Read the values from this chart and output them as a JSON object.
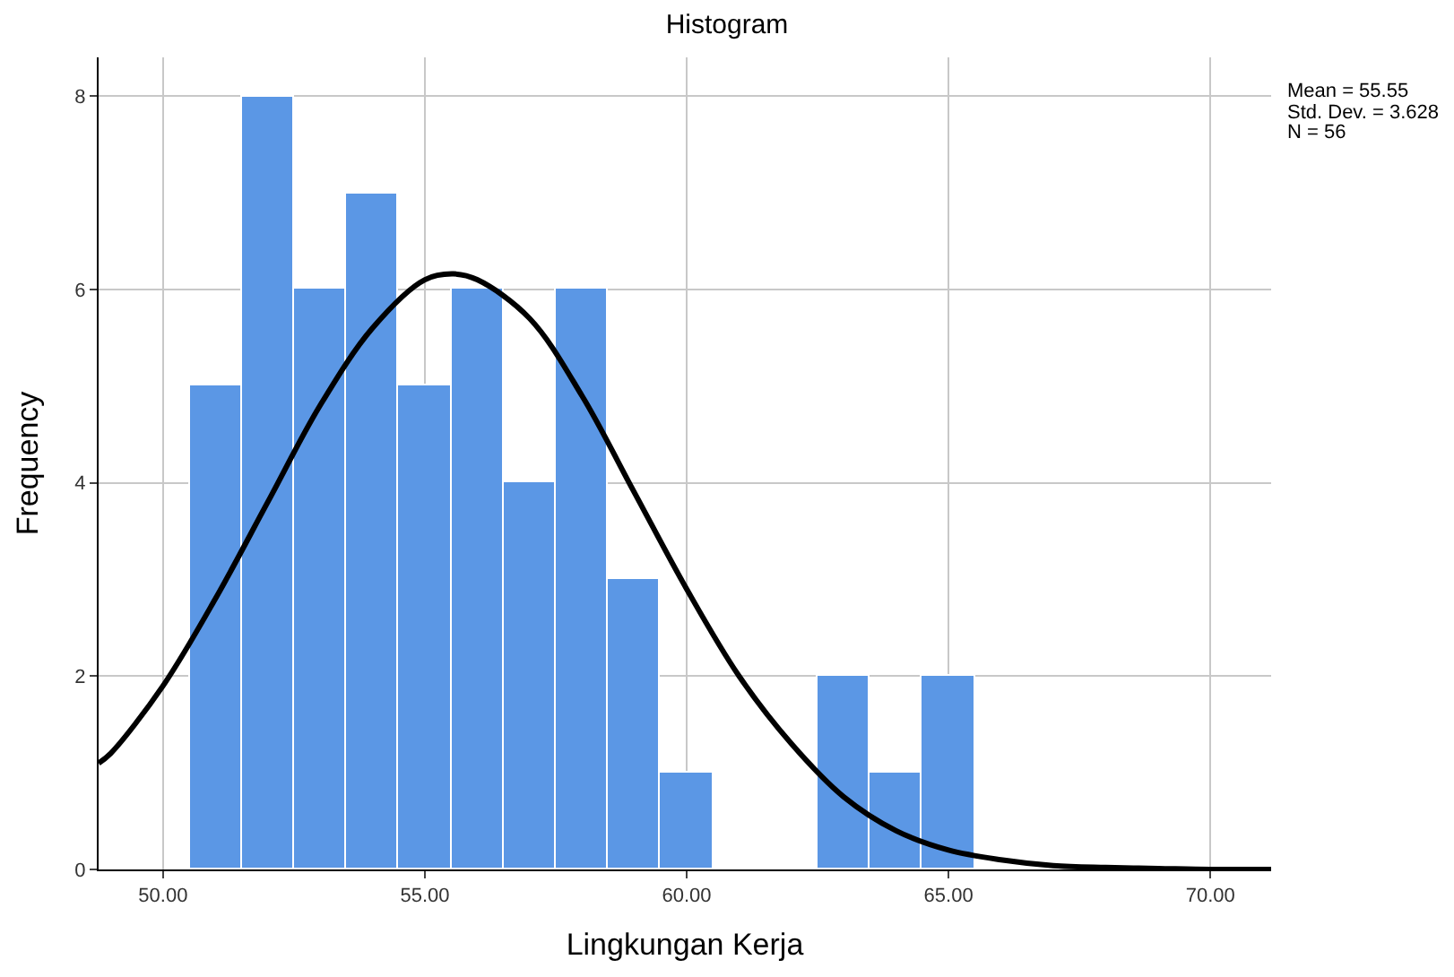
{
  "chart_data": {
    "type": "histogram",
    "title": "Histogram",
    "xlabel": "Lingkungan Kerja",
    "ylabel": "Frequency",
    "series": [
      {
        "color": "#5b97e5",
        "bins": [
          50.5,
          51.5,
          52.5,
          53.5,
          54.5,
          55.5,
          56.5,
          57.5,
          58.5,
          59.5,
          60.5,
          61.5,
          62.5,
          63.5,
          64.5,
          65.5
        ],
        "values": [
          5,
          8,
          6,
          7,
          5,
          6,
          4,
          6,
          3,
          1,
          0,
          0,
          2,
          1,
          2
        ]
      },
      {
        "type": "line",
        "color": "#000000",
        "x": [
          48.77,
          49,
          50,
          51,
          52,
          53,
          54,
          55,
          55.55,
          56,
          57,
          58,
          59,
          60,
          61,
          62,
          63,
          64,
          65,
          66,
          67,
          68,
          69,
          70,
          71.16
        ],
        "values": [
          1.1,
          1.2,
          1.9,
          2.8,
          3.8,
          4.8,
          5.6,
          6.1,
          6.16,
          6.1,
          5.7,
          4.9,
          3.9,
          2.9,
          2.0,
          1.3,
          0.75,
          0.4,
          0.2,
          0.1,
          0.04,
          0.02,
          0.01,
          0,
          0
        ]
      }
    ],
    "xlim": [
      48.77,
      71.16
    ],
    "ylim": [
      0,
      8.4
    ],
    "xticks": [
      {
        "value": 50,
        "label": "50.00"
      },
      {
        "value": 55,
        "label": "55.00"
      },
      {
        "value": 60,
        "label": "60.00"
      },
      {
        "value": 65,
        "label": "65.00"
      },
      {
        "value": 70,
        "label": "70.00"
      }
    ],
    "yticks": [
      0,
      2,
      4,
      6,
      8
    ],
    "grid": true,
    "annotations": [
      "Mean = 55.55",
      "Std. Dev. = 3.628",
      "N = 56"
    ]
  }
}
